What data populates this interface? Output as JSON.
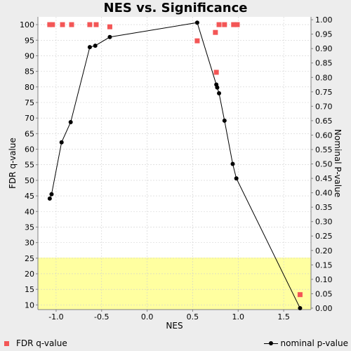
{
  "chart_data": {
    "type": "scatter",
    "title": "NES vs. Significance",
    "xlabel": "NES",
    "ylabel": "FDR q-value",
    "y2label": "Nominal P-value",
    "xlim": [
      -1.2,
      1.8
    ],
    "ylim": [
      8.5,
      102.5
    ],
    "y2lim": [
      -0.005,
      1.01
    ],
    "xticks": [
      "-1.0",
      "-0.5",
      "0.0",
      "0.5",
      "1.0",
      "1.5"
    ],
    "yticks": [
      "10",
      "15",
      "20",
      "25",
      "30",
      "35",
      "40",
      "45",
      "50",
      "55",
      "60",
      "65",
      "70",
      "75",
      "80",
      "85",
      "90",
      "95",
      "100"
    ],
    "y2ticks": [
      "0.00",
      "0.05",
      "0.10",
      "0.15",
      "0.20",
      "0.25",
      "0.30",
      "0.35",
      "0.40",
      "0.45",
      "0.50",
      "0.55",
      "0.60",
      "0.65",
      "0.70",
      "0.75",
      "0.80",
      "0.85",
      "0.90",
      "0.95",
      "1.00"
    ],
    "grid": true,
    "highlight_band": {
      "axis": "y",
      "range": [
        8.5,
        25.2
      ],
      "color": "#ffffa0"
    },
    "series": [
      {
        "name": "FDR q-value",
        "marker": "square",
        "color": "#f35656",
        "x": [
          -1.07,
          -1.04,
          -0.93,
          -0.83,
          -0.63,
          -0.56,
          -0.41,
          0.55,
          0.75,
          0.76,
          0.79,
          0.85,
          0.95,
          0.99
        ],
        "y": [
          100,
          100,
          100,
          100,
          100,
          100,
          99.3,
          94.8,
          97.5,
          84.7,
          100,
          100,
          100,
          100
        ]
      },
      {
        "name": "nominal p-value",
        "marker": "circle",
        "color": "#000000",
        "axis": "right",
        "x": [
          -1.07,
          -1.05,
          -0.94,
          -0.84,
          -0.63,
          -0.57,
          -0.41,
          0.55,
          0.76,
          0.77,
          0.79,
          0.85,
          0.94,
          0.98,
          1.68
        ],
        "y": [
          0.38,
          0.395,
          0.575,
          0.645,
          0.905,
          0.91,
          0.94,
          0.99,
          0.775,
          0.765,
          0.745,
          0.65,
          0.5,
          0.45,
          0.0
        ]
      },
      {
        "name": "",
        "marker": "square",
        "color": "#f35656",
        "x": [
          1.68
        ],
        "y": [
          13.3
        ]
      }
    ]
  },
  "legend": {
    "left_label": "FDR q-value",
    "right_label": "nominal p-value"
  }
}
